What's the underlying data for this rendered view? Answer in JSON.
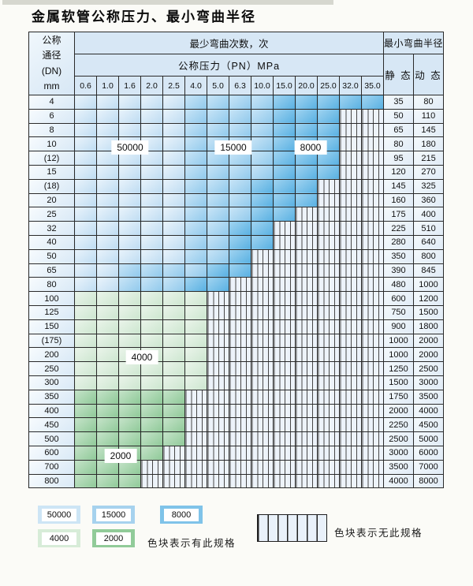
{
  "title": "金属软管公称压力、最小弯曲半径",
  "table": {
    "header": {
      "dn_lines": [
        "公称",
        "通径",
        "(DN)",
        "mm"
      ],
      "cycles_title": "最少弯曲次数，次",
      "radius_title": "最小弯曲半径",
      "pressure_title": "公称压力（PN）MPa",
      "static_label": "静 态",
      "dynamic_label": "动 态",
      "pressures": [
        "0.6",
        "1.0",
        "1.6",
        "2.0",
        "2.5",
        "4.0",
        "5.0",
        "6.3",
        "10.0",
        "15.0",
        "20.0",
        "25.0",
        "32.0",
        "35.0"
      ]
    },
    "rows": [
      {
        "dn": "4",
        "cells": [
          "50000",
          "50000",
          "50000",
          "50000",
          "50000",
          "15000",
          "15000",
          "15000",
          "15000",
          "8000",
          "8000",
          "8000",
          "8000",
          "8000"
        ],
        "static": "35",
        "dynamic": "80"
      },
      {
        "dn": "6",
        "cells": [
          "50000",
          "50000",
          "50000",
          "50000",
          "50000",
          "15000",
          "15000",
          "15000",
          "15000",
          "8000",
          "8000",
          "8000",
          "none",
          "none"
        ],
        "static": "50",
        "dynamic": "110"
      },
      {
        "dn": "8",
        "cells": [
          "50000",
          "50000",
          "50000",
          "50000",
          "50000",
          "15000",
          "15000",
          "15000",
          "15000",
          "8000",
          "8000",
          "8000",
          "none",
          "none"
        ],
        "static": "65",
        "dynamic": "145"
      },
      {
        "dn": "10",
        "cells": [
          "50000",
          "50000",
          "50000",
          "50000",
          "50000",
          "15000",
          "15000",
          "15000",
          "15000",
          "8000",
          "8000",
          "8000",
          "none",
          "none"
        ],
        "static": "80",
        "dynamic": "180"
      },
      {
        "dn": "(12)",
        "cells": [
          "50000",
          "50000",
          "50000",
          "50000",
          "50000",
          "15000",
          "15000",
          "15000",
          "15000",
          "8000",
          "8000",
          "8000",
          "none",
          "none"
        ],
        "static": "95",
        "dynamic": "215"
      },
      {
        "dn": "15",
        "cells": [
          "50000",
          "50000",
          "50000",
          "50000",
          "50000",
          "15000",
          "15000",
          "15000",
          "15000",
          "8000",
          "8000",
          "8000",
          "none",
          "none"
        ],
        "static": "120",
        "dynamic": "270"
      },
      {
        "dn": "(18)",
        "cells": [
          "50000",
          "50000",
          "50000",
          "50000",
          "50000",
          "15000",
          "15000",
          "15000",
          "8000",
          "8000",
          "8000",
          "none",
          "none",
          "none"
        ],
        "static": "145",
        "dynamic": "325"
      },
      {
        "dn": "20",
        "cells": [
          "50000",
          "50000",
          "50000",
          "50000",
          "50000",
          "15000",
          "15000",
          "15000",
          "8000",
          "8000",
          "8000",
          "none",
          "none",
          "none"
        ],
        "static": "160",
        "dynamic": "360"
      },
      {
        "dn": "25",
        "cells": [
          "50000",
          "50000",
          "50000",
          "50000",
          "50000",
          "15000",
          "15000",
          "15000",
          "8000",
          "8000",
          "none",
          "none",
          "none",
          "none"
        ],
        "static": "175",
        "dynamic": "400"
      },
      {
        "dn": "32",
        "cells": [
          "50000",
          "50000",
          "50000",
          "50000",
          "50000",
          "15000",
          "15000",
          "8000",
          "8000",
          "none",
          "none",
          "none",
          "none",
          "none"
        ],
        "static": "225",
        "dynamic": "510"
      },
      {
        "dn": "40",
        "cells": [
          "50000",
          "50000",
          "50000",
          "50000",
          "50000",
          "15000",
          "15000",
          "8000",
          "8000",
          "none",
          "none",
          "none",
          "none",
          "none"
        ],
        "static": "280",
        "dynamic": "640"
      },
      {
        "dn": "50",
        "cells": [
          "50000",
          "50000",
          "50000",
          "50000",
          "50000",
          "15000",
          "15000",
          "8000",
          "none",
          "none",
          "none",
          "none",
          "none",
          "none"
        ],
        "static": "350",
        "dynamic": "800"
      },
      {
        "dn": "65",
        "cells": [
          "50000",
          "50000",
          "15000",
          "15000",
          "15000",
          "15000",
          "8000",
          "8000",
          "none",
          "none",
          "none",
          "none",
          "none",
          "none"
        ],
        "static": "390",
        "dynamic": "845"
      },
      {
        "dn": "80",
        "cells": [
          "50000",
          "50000",
          "15000",
          "15000",
          "15000",
          "8000",
          "8000",
          "none",
          "none",
          "none",
          "none",
          "none",
          "none",
          "none"
        ],
        "static": "480",
        "dynamic": "1000"
      },
      {
        "dn": "100",
        "cells": [
          "4000",
          "4000",
          "4000",
          "4000",
          "4000",
          "4000",
          "none",
          "none",
          "none",
          "none",
          "none",
          "none",
          "none",
          "none"
        ],
        "static": "600",
        "dynamic": "1200"
      },
      {
        "dn": "125",
        "cells": [
          "4000",
          "4000",
          "4000",
          "4000",
          "4000",
          "4000",
          "none",
          "none",
          "none",
          "none",
          "none",
          "none",
          "none",
          "none"
        ],
        "static": "750",
        "dynamic": "1500"
      },
      {
        "dn": "150",
        "cells": [
          "4000",
          "4000",
          "4000",
          "4000",
          "4000",
          "4000",
          "none",
          "none",
          "none",
          "none",
          "none",
          "none",
          "none",
          "none"
        ],
        "static": "900",
        "dynamic": "1800"
      },
      {
        "dn": "(175)",
        "cells": [
          "4000",
          "4000",
          "4000",
          "4000",
          "4000",
          "4000",
          "none",
          "none",
          "none",
          "none",
          "none",
          "none",
          "none",
          "none"
        ],
        "static": "1000",
        "dynamic": "2000"
      },
      {
        "dn": "200",
        "cells": [
          "4000",
          "4000",
          "4000",
          "4000",
          "4000",
          "4000",
          "none",
          "none",
          "none",
          "none",
          "none",
          "none",
          "none",
          "none"
        ],
        "static": "1000",
        "dynamic": "2000"
      },
      {
        "dn": "250",
        "cells": [
          "4000",
          "4000",
          "4000",
          "4000",
          "4000",
          "4000",
          "none",
          "none",
          "none",
          "none",
          "none",
          "none",
          "none",
          "none"
        ],
        "static": "1250",
        "dynamic": "2500"
      },
      {
        "dn": "300",
        "cells": [
          "4000",
          "4000",
          "4000",
          "4000",
          "4000",
          "4000",
          "none",
          "none",
          "none",
          "none",
          "none",
          "none",
          "none",
          "none"
        ],
        "static": "1500",
        "dynamic": "3000"
      },
      {
        "dn": "350",
        "cells": [
          "2000",
          "2000",
          "2000",
          "2000",
          "2000",
          "none",
          "none",
          "none",
          "none",
          "none",
          "none",
          "none",
          "none",
          "none"
        ],
        "static": "1750",
        "dynamic": "3500"
      },
      {
        "dn": "400",
        "cells": [
          "2000",
          "2000",
          "2000",
          "2000",
          "2000",
          "none",
          "none",
          "none",
          "none",
          "none",
          "none",
          "none",
          "none",
          "none"
        ],
        "static": "2000",
        "dynamic": "4000"
      },
      {
        "dn": "450",
        "cells": [
          "2000",
          "2000",
          "2000",
          "2000",
          "2000",
          "none",
          "none",
          "none",
          "none",
          "none",
          "none",
          "none",
          "none",
          "none"
        ],
        "static": "2250",
        "dynamic": "4500"
      },
      {
        "dn": "500",
        "cells": [
          "2000",
          "2000",
          "2000",
          "2000",
          "2000",
          "none",
          "none",
          "none",
          "none",
          "none",
          "none",
          "none",
          "none",
          "none"
        ],
        "static": "2500",
        "dynamic": "5000"
      },
      {
        "dn": "600",
        "cells": [
          "2000",
          "2000",
          "2000",
          "2000",
          "none",
          "none",
          "none",
          "none",
          "none",
          "none",
          "none",
          "none",
          "none",
          "none"
        ],
        "static": "3000",
        "dynamic": "6000"
      },
      {
        "dn": "700",
        "cells": [
          "2000",
          "2000",
          "2000",
          "none",
          "none",
          "none",
          "none",
          "none",
          "none",
          "none",
          "none",
          "none",
          "none",
          "none"
        ],
        "static": "3500",
        "dynamic": "7000"
      },
      {
        "dn": "800",
        "cells": [
          "2000",
          "2000",
          "2000",
          "none",
          "none",
          "none",
          "none",
          "none",
          "none",
          "none",
          "none",
          "none",
          "none",
          "none"
        ],
        "static": "4000",
        "dynamic": "8000"
      }
    ]
  },
  "region_labels": [
    {
      "text": "50000"
    },
    {
      "text": "15000"
    },
    {
      "text": "8000"
    },
    {
      "text": "4000"
    },
    {
      "text": "2000"
    }
  ],
  "legend": {
    "blocks": [
      {
        "label": "50000",
        "color": "#cde5f5"
      },
      {
        "label": "15000",
        "color": "#a6d2ee"
      },
      {
        "label": "8000",
        "color": "#7fc3e9"
      },
      {
        "label": "4000",
        "color": "#d7ecd8"
      },
      {
        "label": "2000",
        "color": "#91cb99"
      }
    ],
    "available_note": "色块表示有此规格",
    "unavailable_note": "色块表示无此规格"
  },
  "colors": {
    "grid": "#2a2a2a",
    "header_bg": "#d7e7f5",
    "cycles_50000": "#cde5f5",
    "cycles_15000": "#a6d2ee",
    "cycles_8000": "#7fc3e9",
    "cycles_4000": "#d7ecd8",
    "cycles_2000": "#91cb99",
    "hatch_bg": "#edf3fa"
  }
}
